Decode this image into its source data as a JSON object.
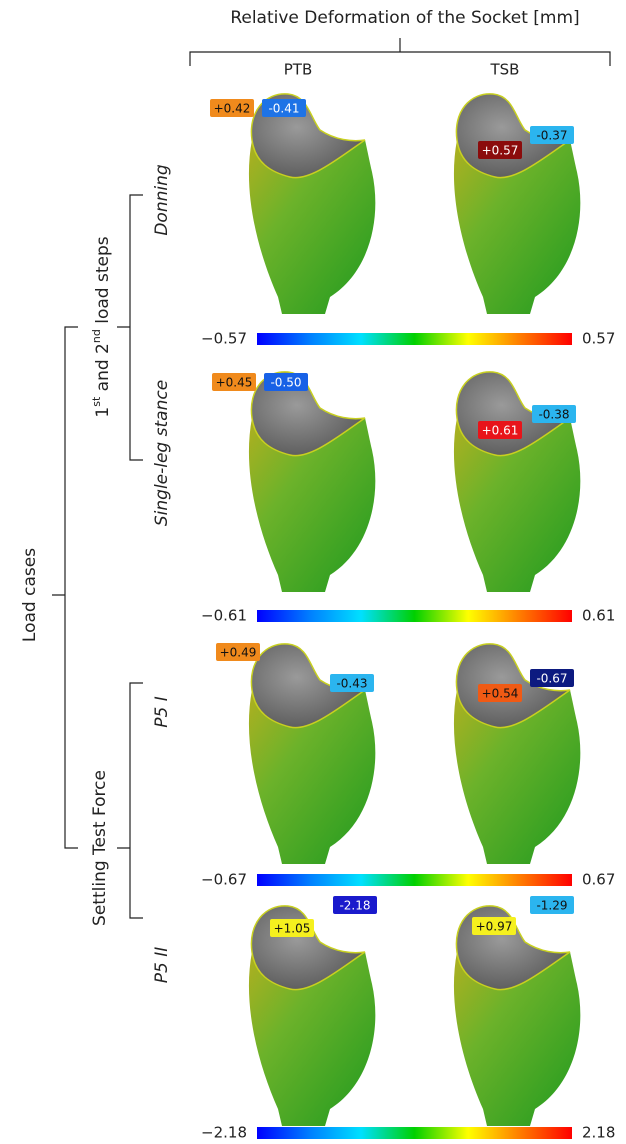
{
  "title": "Relative Deformation of the Socket [mm]",
  "columns": [
    "PTB",
    "TSB"
  ],
  "outer_label": "Load cases",
  "groups": [
    {
      "label_parts": [
        "1",
        "st",
        " and 2",
        "nd",
        " load steps"
      ]
    },
    {
      "label_parts": [
        "Settling Test Force"
      ]
    }
  ],
  "rows": [
    {
      "label": "Donning",
      "annotations": [
        [
          {
            "text": "+0.42",
            "color": "#f08a1c"
          },
          {
            "text": "-0.41",
            "color": "#1e73e6"
          }
        ],
        [
          {
            "text": "+0.57",
            "color": "#8b0c0c"
          },
          {
            "text": "-0.37",
            "color": "#2bb5ef"
          }
        ]
      ],
      "scale": [
        "−0.57",
        "0.57"
      ]
    },
    {
      "label": "Single-leg stance",
      "annotations": [
        [
          {
            "text": "+0.45",
            "color": "#f08a1c"
          },
          {
            "text": "-0.50",
            "color": "#1861e6"
          }
        ],
        [
          {
            "text": "+0.61",
            "color": "#e8141a"
          },
          {
            "text": "-0.38",
            "color": "#2bb5ef"
          }
        ]
      ],
      "scale": [
        "−0.61",
        "0.61"
      ]
    },
    {
      "label": "P5 I",
      "annotations": [
        [
          {
            "text": "+0.49",
            "color": "#f08a1c"
          },
          {
            "text": "-0.43",
            "color": "#2bb5ef"
          }
        ],
        [
          {
            "text": "+0.54",
            "color": "#f05a14"
          },
          {
            "text": "-0.67",
            "color": "#0c1a80"
          }
        ]
      ],
      "scale": [
        "−0.67",
        "0.67"
      ]
    },
    {
      "label": "P5 II",
      "annotations": [
        [
          {
            "text": "+1.05",
            "color": "#f5f01e"
          },
          {
            "text": "-2.18",
            "color": "#1a1acc"
          }
        ],
        [
          {
            "text": "+0.97",
            "color": "#f5f01e"
          },
          {
            "text": "-1.29",
            "color": "#2bb5ef"
          }
        ]
      ],
      "scale": [
        "−2.18",
        "2.18"
      ]
    }
  ]
}
